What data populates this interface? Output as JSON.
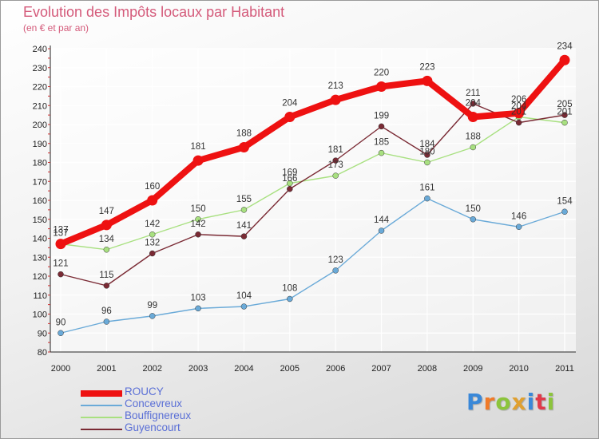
{
  "header": {
    "title": "Evolution des Impôts locaux par Habitant",
    "subtitle": "(en € et par an)"
  },
  "brand": {
    "letters": [
      "P",
      "r",
      "o",
      "x",
      "i",
      "t",
      "i"
    ],
    "letter_colors": [
      "#3a88d8",
      "#f07a28",
      "#8cc43c",
      "#e0a030",
      "#3a88d8",
      "#e03a4a",
      "#8cc43c"
    ]
  },
  "chart_data": {
    "type": "line",
    "title": "Evolution des Impôts locaux par Habitant",
    "subtitle": "(en € et par an)",
    "xlabel": "",
    "ylabel": "",
    "categories": [
      "2000",
      "2001",
      "2002",
      "2003",
      "2004",
      "2005",
      "2006",
      "2007",
      "2008",
      "2009",
      "2010",
      "2011"
    ],
    "ylim": [
      80,
      240
    ],
    "yticks": [
      80,
      90,
      100,
      110,
      120,
      130,
      140,
      150,
      160,
      170,
      180,
      190,
      200,
      210,
      220,
      230,
      240
    ],
    "grid": true,
    "legend_position": "bottom-left",
    "series": [
      {
        "name": "ROUCY",
        "color": "#ee1111",
        "values": [
          137,
          147,
          160,
          181,
          188,
          204,
          213,
          220,
          223,
          204,
          206,
          234
        ]
      },
      {
        "name": "Concevreux",
        "color": "#6aaad8",
        "values": [
          90,
          96,
          99,
          103,
          104,
          108,
          123,
          144,
          161,
          150,
          146,
          154
        ]
      },
      {
        "name": "Bouffignereux",
        "color": "#a8e080",
        "values": [
          137,
          134,
          142,
          150,
          155,
          169,
          173,
          185,
          180,
          188,
          204,
          201
        ]
      },
      {
        "name": "Guyencourt",
        "color": "#7a2a34",
        "values": [
          121,
          115,
          132,
          142,
          141,
          166,
          181,
          199,
          184,
          211,
          201,
          205
        ]
      }
    ]
  }
}
